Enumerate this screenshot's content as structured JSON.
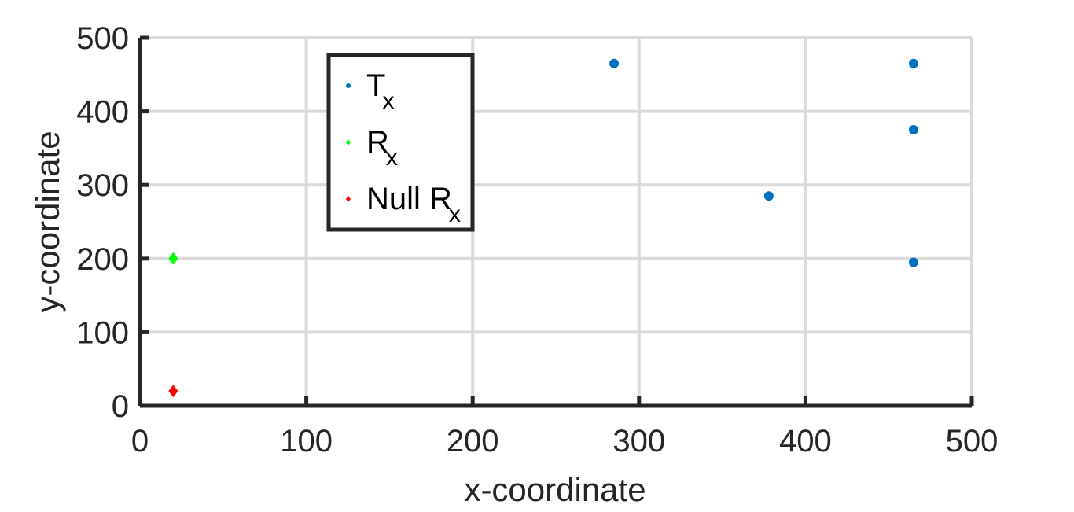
{
  "chart_data": {
    "type": "scatter",
    "xlabel": "x-coordinate",
    "ylabel": "y-coordinate",
    "xlim": [
      0,
      500
    ],
    "ylim": [
      0,
      500
    ],
    "xticks": [
      "0",
      "100",
      "200",
      "300",
      "400",
      "500"
    ],
    "yticks": [
      "0",
      "100",
      "200",
      "300",
      "400",
      "500"
    ],
    "grid": true,
    "legend_position": "top-left",
    "series": [
      {
        "name": "T",
        "name_subscript": "x",
        "marker": "dot",
        "color": "#0072BD",
        "points": [
          [
            285,
            465
          ],
          [
            465,
            465
          ],
          [
            465,
            375
          ],
          [
            378,
            285
          ],
          [
            465,
            195
          ]
        ]
      },
      {
        "name": "R",
        "name_subscript": "x",
        "marker": "diamond",
        "color": "#00FF00",
        "points": [
          [
            20,
            200
          ]
        ]
      },
      {
        "name": "Null R",
        "name_subscript": "x",
        "marker": "diamond",
        "color": "#FF0000",
        "points": [
          [
            20,
            20
          ]
        ]
      }
    ]
  }
}
